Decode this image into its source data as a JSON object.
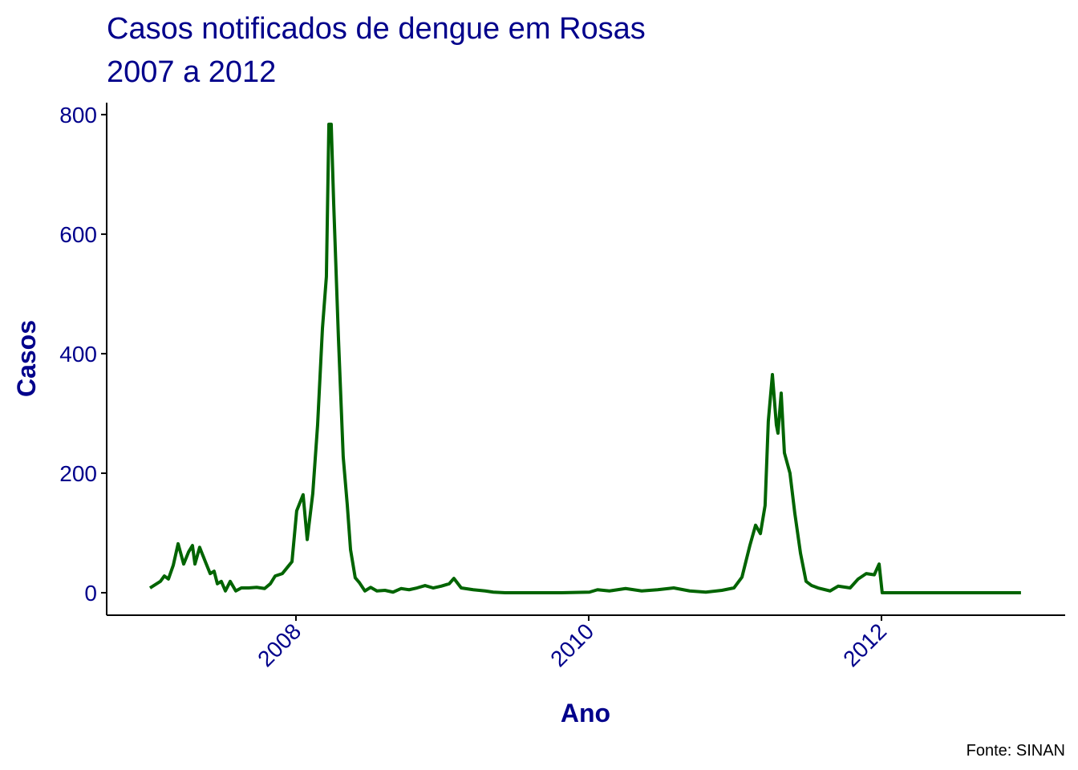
{
  "chart_data": {
    "type": "line",
    "title": "Casos notificados de dengue em Rosas",
    "subtitle": "2007 a 2012",
    "x_label": "Ano",
    "y_label": "Casos",
    "caption": "Fonte: SINAN",
    "color": "#006400",
    "x": [
      2007.003,
      2007.074,
      2007.101,
      2007.129,
      2007.162,
      2007.195,
      2007.233,
      2007.266,
      2007.293,
      2007.31,
      2007.342,
      2007.381,
      2007.414,
      2007.441,
      2007.463,
      2007.49,
      2007.518,
      2007.551,
      2007.589,
      2007.627,
      2007.677,
      2007.732,
      2007.786,
      2007.825,
      2007.858,
      2007.907,
      2007.94,
      2007.973,
      2008.005,
      2008.049,
      2008.077,
      2008.115,
      2008.148,
      2008.181,
      2008.208,
      2008.225,
      2008.241,
      2008.258,
      2008.29,
      2008.323,
      2008.351,
      2008.373,
      2008.405,
      2008.433,
      2008.471,
      2008.51,
      2008.553,
      2008.608,
      2008.663,
      2008.718,
      2008.773,
      2008.827,
      2008.882,
      2008.937,
      2008.992,
      2009.047,
      2009.079,
      2009.129,
      2009.211,
      2009.293,
      2009.348,
      2009.43,
      2009.814,
      2010.005,
      2010.06,
      2010.142,
      2010.252,
      2010.362,
      2010.471,
      2010.581,
      2010.69,
      2010.8,
      2010.91,
      2010.992,
      2011.047,
      2011.101,
      2011.14,
      2011.173,
      2011.205,
      2011.227,
      2011.255,
      2011.282,
      2011.293,
      2011.315,
      2011.337,
      2011.375,
      2011.408,
      2011.447,
      2011.485,
      2011.523,
      2011.567,
      2011.649,
      2011.704,
      2011.786,
      2011.841,
      2011.896,
      2011.951,
      2011.984,
      2012.005,
      2012.953
    ],
    "values": [
      8,
      19,
      28,
      23,
      46,
      82,
      48,
      68,
      79,
      48,
      76,
      52,
      32,
      36,
      15,
      19,
      3,
      19,
      3,
      8,
      8,
      9,
      7,
      15,
      28,
      32,
      42,
      52,
      137,
      164,
      89,
      166,
      281,
      442,
      529,
      784,
      784,
      650,
      428,
      227,
      146,
      72,
      25,
      17,
      3,
      9,
      3,
      4,
      1,
      7,
      5,
      8,
      12,
      8,
      11,
      15,
      24,
      8,
      5,
      3,
      1,
      0,
      0,
      1,
      5,
      3,
      7,
      3,
      5,
      8,
      3,
      1,
      4,
      8,
      26,
      79,
      113,
      99,
      146,
      287,
      365,
      281,
      267,
      334,
      234,
      200,
      133,
      66,
      19,
      12,
      8,
      3,
      11,
      8,
      23,
      32,
      30,
      48,
      0,
      0
    ],
    "xlim": [
      2006.707,
      2013.255
    ],
    "ylim": [
      -37.6,
      820
    ],
    "xticks": [
      2008,
      2010,
      2012
    ],
    "yticks": [
      0,
      200,
      400,
      600,
      800
    ]
  }
}
